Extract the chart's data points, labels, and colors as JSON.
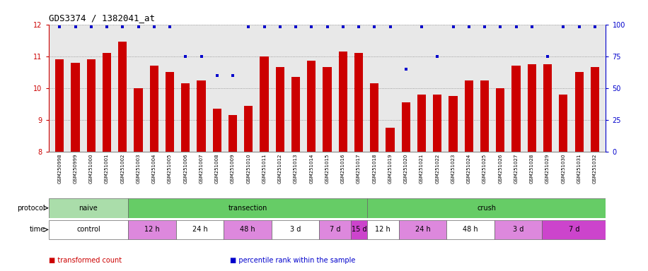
{
  "title": "GDS3374 / 1382041_at",
  "samples": [
    "GSM250998",
    "GSM250999",
    "GSM251000",
    "GSM251001",
    "GSM251002",
    "GSM251003",
    "GSM251004",
    "GSM251005",
    "GSM251006",
    "GSM251007",
    "GSM251008",
    "GSM251009",
    "GSM251010",
    "GSM251011",
    "GSM251012",
    "GSM251013",
    "GSM251014",
    "GSM251015",
    "GSM251016",
    "GSM251017",
    "GSM251018",
    "GSM251019",
    "GSM251020",
    "GSM251021",
    "GSM251022",
    "GSM251023",
    "GSM251024",
    "GSM251025",
    "GSM251026",
    "GSM251027",
    "GSM251028",
    "GSM251029",
    "GSM251030",
    "GSM251031",
    "GSM251032"
  ],
  "bar_values": [
    10.9,
    10.8,
    10.9,
    11.1,
    11.45,
    10.0,
    10.7,
    10.5,
    10.15,
    10.25,
    9.35,
    9.15,
    9.45,
    11.0,
    10.65,
    10.35,
    10.85,
    10.65,
    11.15,
    11.1,
    10.15,
    8.75,
    9.55,
    9.8,
    9.8,
    9.75,
    10.25,
    10.25,
    10.0,
    10.7,
    10.75,
    10.75,
    9.8,
    10.5,
    10.65
  ],
  "percentile_values": [
    98,
    98,
    98,
    98,
    98,
    98,
    98,
    98,
    75,
    75,
    60,
    60,
    98,
    98,
    98,
    98,
    98,
    98,
    98,
    98,
    98,
    98,
    65,
    98,
    75,
    98,
    98,
    98,
    98,
    98,
    98,
    75,
    98,
    98,
    98
  ],
  "bar_color": "#cc0000",
  "dot_color": "#0000cc",
  "ylim_left": [
    8,
    12
  ],
  "ylim_right": [
    0,
    100
  ],
  "yticks_left": [
    8,
    9,
    10,
    11,
    12
  ],
  "yticks_right": [
    0,
    25,
    50,
    75,
    100
  ],
  "grid_color": "#888888",
  "fig_bg": "#ffffff",
  "chart_bg": "#e8e8e8",
  "proto_items": [
    {
      "label": "naive",
      "start": 0,
      "end": 4,
      "color": "#aaddaa"
    },
    {
      "label": "transection",
      "start": 5,
      "end": 19,
      "color": "#66cc66"
    },
    {
      "label": "crush",
      "start": 20,
      "end": 34,
      "color": "#66cc66"
    }
  ],
  "time_items": [
    {
      "label": "control",
      "start": 0,
      "end": 4,
      "color": "#ffffff"
    },
    {
      "label": "12 h",
      "start": 5,
      "end": 7,
      "color": "#dd88dd"
    },
    {
      "label": "24 h",
      "start": 8,
      "end": 10,
      "color": "#ffffff"
    },
    {
      "label": "48 h",
      "start": 11,
      "end": 13,
      "color": "#dd88dd"
    },
    {
      "label": "3 d",
      "start": 14,
      "end": 16,
      "color": "#ffffff"
    },
    {
      "label": "7 d",
      "start": 17,
      "end": 18,
      "color": "#dd88dd"
    },
    {
      "label": "15 d",
      "start": 19,
      "end": 19,
      "color": "#cc44cc"
    },
    {
      "label": "12 h",
      "start": 20,
      "end": 21,
      "color": "#ffffff"
    },
    {
      "label": "24 h",
      "start": 22,
      "end": 24,
      "color": "#dd88dd"
    },
    {
      "label": "48 h",
      "start": 25,
      "end": 27,
      "color": "#ffffff"
    },
    {
      "label": "3 d",
      "start": 28,
      "end": 30,
      "color": "#dd88dd"
    },
    {
      "label": "7 d",
      "start": 31,
      "end": 34,
      "color": "#cc44cc"
    }
  ],
  "legend_items": [
    {
      "label": "transformed count",
      "color": "#cc0000"
    },
    {
      "label": "percentile rank within the sample",
      "color": "#0000cc"
    }
  ]
}
